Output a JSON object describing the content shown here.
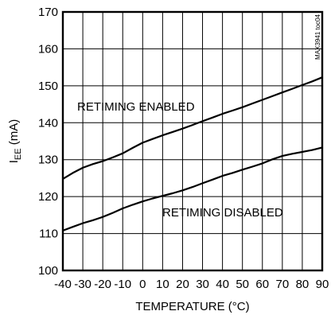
{
  "chart_data": {
    "type": "line",
    "xlabel": "TEMPERATURE (°C)",
    "ylabel": {
      "main": "I",
      "subscript": "EE",
      "unit": " (mA)"
    },
    "xlim": [
      -40,
      90
    ],
    "ylim": [
      100,
      170
    ],
    "x_ticks": [
      "-40",
      "-30",
      "-20",
      "-10",
      "0",
      "10",
      "20",
      "30",
      "40",
      "50",
      "60",
      "70",
      "80",
      "90"
    ],
    "y_ticks": [
      "100",
      "110",
      "120",
      "130",
      "140",
      "150",
      "160",
      "170"
    ],
    "grid": true,
    "watermark": "MAX3941 toc04",
    "series": [
      {
        "name": "RETIMING ENABLED",
        "color": "#000000",
        "x": [
          -40,
          -35,
          -30,
          -25,
          -20,
          -15,
          -10,
          -5,
          0,
          5,
          10,
          15,
          20,
          25,
          30,
          35,
          40,
          45,
          50,
          55,
          60,
          65,
          70,
          75,
          80,
          85,
          90
        ],
        "y": [
          124.8,
          126.4,
          127.8,
          128.8,
          129.6,
          130.6,
          131.7,
          133.2,
          134.6,
          135.6,
          136.6,
          137.5,
          138.4,
          139.4,
          140.4,
          141.4,
          142.4,
          143.3,
          144.2,
          145.2,
          146.2,
          147.2,
          148.2,
          149.2,
          150.2,
          151.2,
          152.3
        ]
      },
      {
        "name": "RETIMING DISABLED",
        "color": "#000000",
        "x": [
          -40,
          -35,
          -30,
          -25,
          -20,
          -15,
          -10,
          -5,
          0,
          5,
          10,
          15,
          20,
          25,
          30,
          35,
          40,
          45,
          50,
          55,
          60,
          65,
          70,
          75,
          80,
          85,
          90
        ],
        "y": [
          110.8,
          111.8,
          112.8,
          113.6,
          114.5,
          115.6,
          116.8,
          117.8,
          118.7,
          119.5,
          120.2,
          120.9,
          121.7,
          122.6,
          123.6,
          124.6,
          125.6,
          126.4,
          127.3,
          128.1,
          129.0,
          130.1,
          131.0,
          131.6,
          132.1,
          132.6,
          133.3
        ]
      }
    ]
  }
}
